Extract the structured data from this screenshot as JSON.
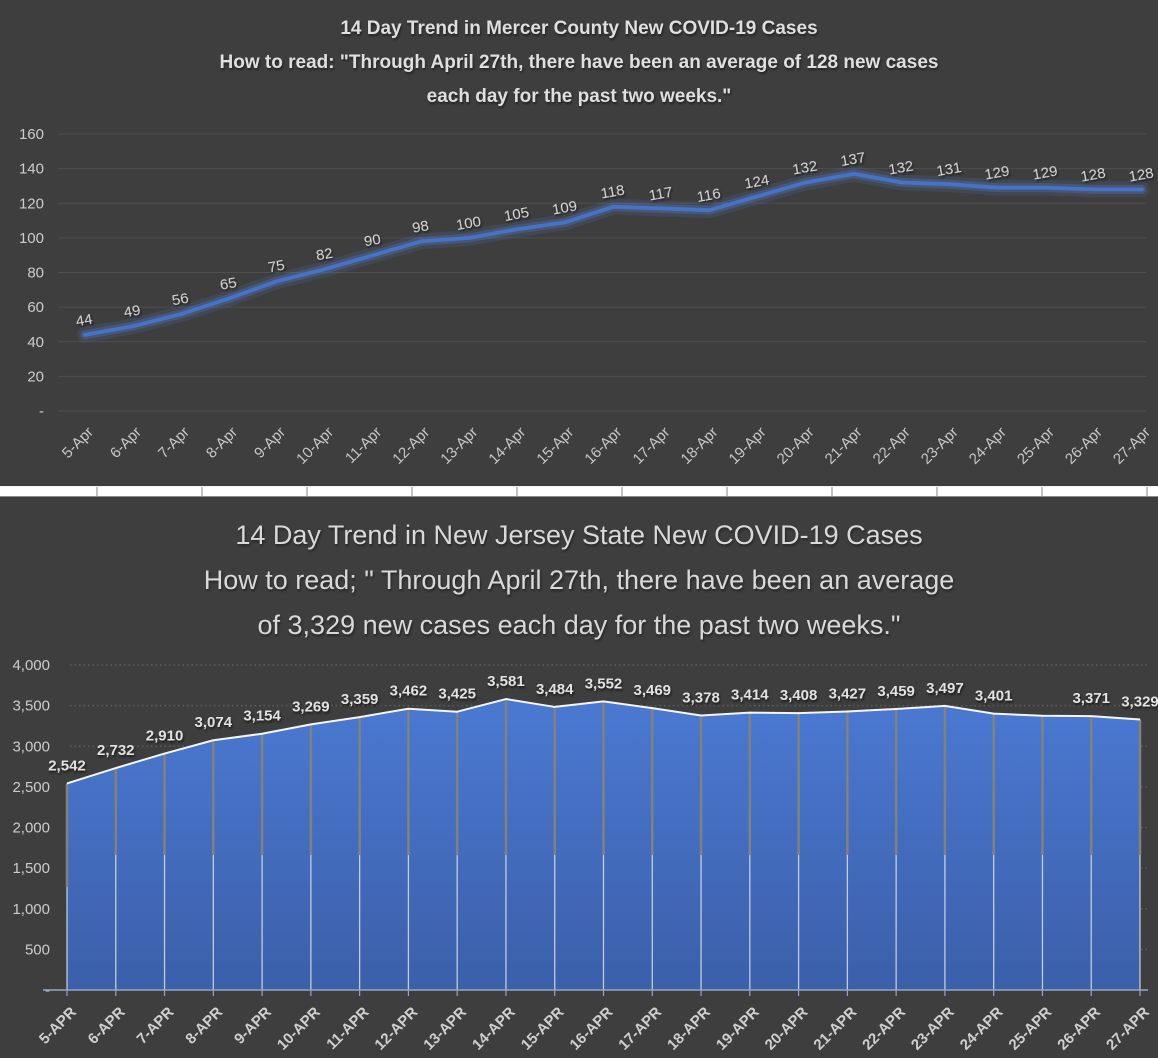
{
  "colors": {
    "background": "#3E3E3E",
    "grid_solid": "#4F4F4F",
    "grid_dotted": "#5C5C5C",
    "line_blue": "#4573C9",
    "line_glow": "#5B82D4",
    "area_blue_top": "#4B79D2",
    "area_blue_bottom": "#3B5FA9",
    "area_outline": "#F5F5F5",
    "drop_line_gray": "#7F7F7F",
    "drop_line_light": "#E6E6E6",
    "category_axis": "#93A5C6",
    "label_light": "#DCDCDC",
    "separator_white": "#FFFFFF"
  },
  "chart_data": [
    {
      "type": "line",
      "title_lines": [
        "14 Day Trend in Mercer County New COVID-19 Cases",
        "How to read: \"Through April 27th, there have been an average of 128 new cases",
        "each day for the past two weeks.\""
      ],
      "categories": [
        "5-Apr",
        "6-Apr",
        "7-Apr",
        "8-Apr",
        "9-Apr",
        "10-Apr",
        "11-Apr",
        "12-Apr",
        "13-Apr",
        "14-Apr",
        "15-Apr",
        "16-Apr",
        "17-Apr",
        "18-Apr",
        "19-Apr",
        "20-Apr",
        "21-Apr",
        "22-Apr",
        "23-Apr",
        "24-Apr",
        "25-Apr",
        "26-Apr",
        "27-Apr"
      ],
      "values": [
        44,
        49,
        56,
        65,
        75,
        82,
        90,
        98,
        100,
        105,
        109,
        118,
        117,
        116,
        124,
        132,
        137,
        132,
        131,
        129,
        129,
        128,
        128
      ],
      "display_labels": [
        "44",
        "49",
        "56",
        "65",
        "75",
        "82",
        "90",
        "98",
        "100",
        "105",
        "109",
        "118",
        "117",
        "116",
        "124",
        "132",
        "137",
        "132",
        "131",
        "129",
        "129",
        "128",
        "128"
      ],
      "ylim": [
        0,
        160
      ],
      "ytick_step": 20,
      "ytick_labels": [
        "-",
        "20",
        "40",
        "60",
        "80",
        "100",
        "120",
        "140",
        "160"
      ],
      "grid": "solid",
      "legend": "none"
    },
    {
      "type": "area",
      "title_lines": [
        "14 Day Trend in New Jersey State New COVID-19 Cases",
        "How to read; \" Through April 27th, there have been an average",
        "of 3,329 new cases each day for the past two weeks.\""
      ],
      "categories": [
        "5-APR",
        "6-APR",
        "7-APR",
        "8-APR",
        "9-APR",
        "10-APR",
        "11-APR",
        "12-APR",
        "13-APR",
        "14-APR",
        "15-APR",
        "16-APR",
        "17-APR",
        "18-APR",
        "19-APR",
        "20-APR",
        "21-APR",
        "22-APR",
        "23-APR",
        "24-APR",
        "25-APR",
        "26-APR",
        "27-APR"
      ],
      "values": [
        2542,
        2732,
        2910,
        3074,
        3154,
        3269,
        3359,
        3462,
        3425,
        3581,
        3484,
        3552,
        3469,
        3378,
        3414,
        3408,
        3427,
        3459,
        3497,
        3401,
        3375,
        3371,
        3329
      ],
      "display_labels": [
        "2,542",
        "2,732",
        "2,910",
        "3,074",
        "3,154",
        "3,269",
        "3,359",
        "3,462",
        "3,425",
        "3,581",
        "3,484",
        "3,552",
        "3,469",
        "3,378",
        "3,414",
        "3,408",
        "3,427",
        "3,459",
        "3,497",
        "3,401",
        "",
        "3,371",
        "3,329"
      ],
      "ylim": [
        0,
        4000
      ],
      "ytick_step": 500,
      "ytick_labels": [
        "-",
        "500",
        "1,000",
        "1,500",
        "2,000",
        "2,500",
        "3,000",
        "3,500",
        "4,000"
      ],
      "grid": "dotted",
      "legend": "none"
    }
  ]
}
